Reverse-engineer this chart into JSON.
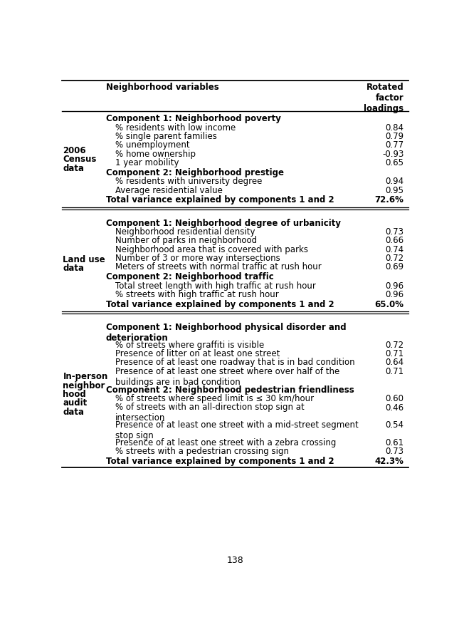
{
  "page_number": "138",
  "col1_header": "Neighborhood variables",
  "col2_header": "Rotated\nfactor\nloadings",
  "sections": [
    {
      "row_label": [
        "2006",
        "Census",
        "data"
      ],
      "components": [
        {
          "title": "Component 1: Neighborhood poverty",
          "title_lines": 1,
          "items": [
            {
              "text": "% residents with low income",
              "lines": 1,
              "value": "0.84"
            },
            {
              "text": "% single parent families",
              "lines": 1,
              "value": "0.79"
            },
            {
              "text": "% unemployment",
              "lines": 1,
              "value": "0.77"
            },
            {
              "text": "% home ownership",
              "lines": 1,
              "value": "-0.93"
            },
            {
              "text": "1 year mobility",
              "lines": 1,
              "value": "0.65"
            }
          ]
        },
        {
          "title": "Component 2: Neighborhood prestige",
          "title_lines": 1,
          "items": [
            {
              "text": "% residents with university degree",
              "lines": 1,
              "value": "0.94"
            },
            {
              "text": "Average residential value",
              "lines": 1,
              "value": "0.95"
            }
          ]
        }
      ],
      "total_text": "Total variance explained by components 1 and 2",
      "total_value": "72.6%"
    },
    {
      "row_label": [
        "Land use",
        "data"
      ],
      "components": [
        {
          "title": "Component 1: Neighborhood degree of urbanicity",
          "title_lines": 1,
          "items": [
            {
              "text": "Neighborhood residential density",
              "lines": 1,
              "value": "0.73"
            },
            {
              "text": "Number of parks in neighborhood",
              "lines": 1,
              "value": "0.66"
            },
            {
              "text": "Neighborhood area that is covered with parks",
              "lines": 1,
              "value": "0.74"
            },
            {
              "text": "Number of 3 or more way intersections",
              "lines": 1,
              "value": "0.72"
            },
            {
              "text": "Meters of streets with normal traffic at rush hour",
              "lines": 1,
              "value": "0.69"
            }
          ]
        },
        {
          "title": "Component 2: Neighborhood traffic",
          "title_lines": 1,
          "items": [
            {
              "text": "Total street length with high traffic at rush hour",
              "lines": 1,
              "value": "0.96"
            },
            {
              "text": "% streets with high traffic at rush hour",
              "lines": 1,
              "value": "0.96"
            }
          ]
        }
      ],
      "total_text": "Total variance explained by components 1 and 2",
      "total_value": "65.0%"
    },
    {
      "row_label": [
        "In-person",
        "neighbor",
        "hood",
        "audit",
        "data"
      ],
      "components": [
        {
          "title": "Component 1: Neighborhood physical disorder and\ndeterioration",
          "title_lines": 2,
          "items": [
            {
              "text": "% of streets where graffiti is visible",
              "lines": 1,
              "value": "0.72"
            },
            {
              "text": "Presence of litter on at least one street",
              "lines": 1,
              "value": "0.71"
            },
            {
              "text": "Presence of at least one roadway that is in bad condition",
              "lines": 1,
              "value": "0.64"
            },
            {
              "text": "Presence of at least one street where over half of the\nbuildings are in bad condition",
              "lines": 2,
              "value": "0.71"
            }
          ]
        },
        {
          "title": "Component 2: Neighborhood pedestrian friendliness",
          "title_lines": 1,
          "items": [
            {
              "text": "% of streets where speed limit is ≤ 30 km/hour",
              "lines": 1,
              "value": "0.60"
            },
            {
              "text": "% of streets with an all-direction stop sign at\nintersection",
              "lines": 2,
              "value": "0.46"
            },
            {
              "text": "Presence of at least one street with a mid-street segment\nstop sign",
              "lines": 2,
              "value": "0.54"
            },
            {
              "text": "Presence of at least one street with a zebra crossing",
              "lines": 1,
              "value": "0.61"
            },
            {
              "text": "% streets with a pedestrian crossing sign",
              "lines": 1,
              "value": "0.73"
            }
          ]
        }
      ],
      "total_text": "Total variance explained by components 1 and 2",
      "total_value": "42.3%"
    }
  ]
}
